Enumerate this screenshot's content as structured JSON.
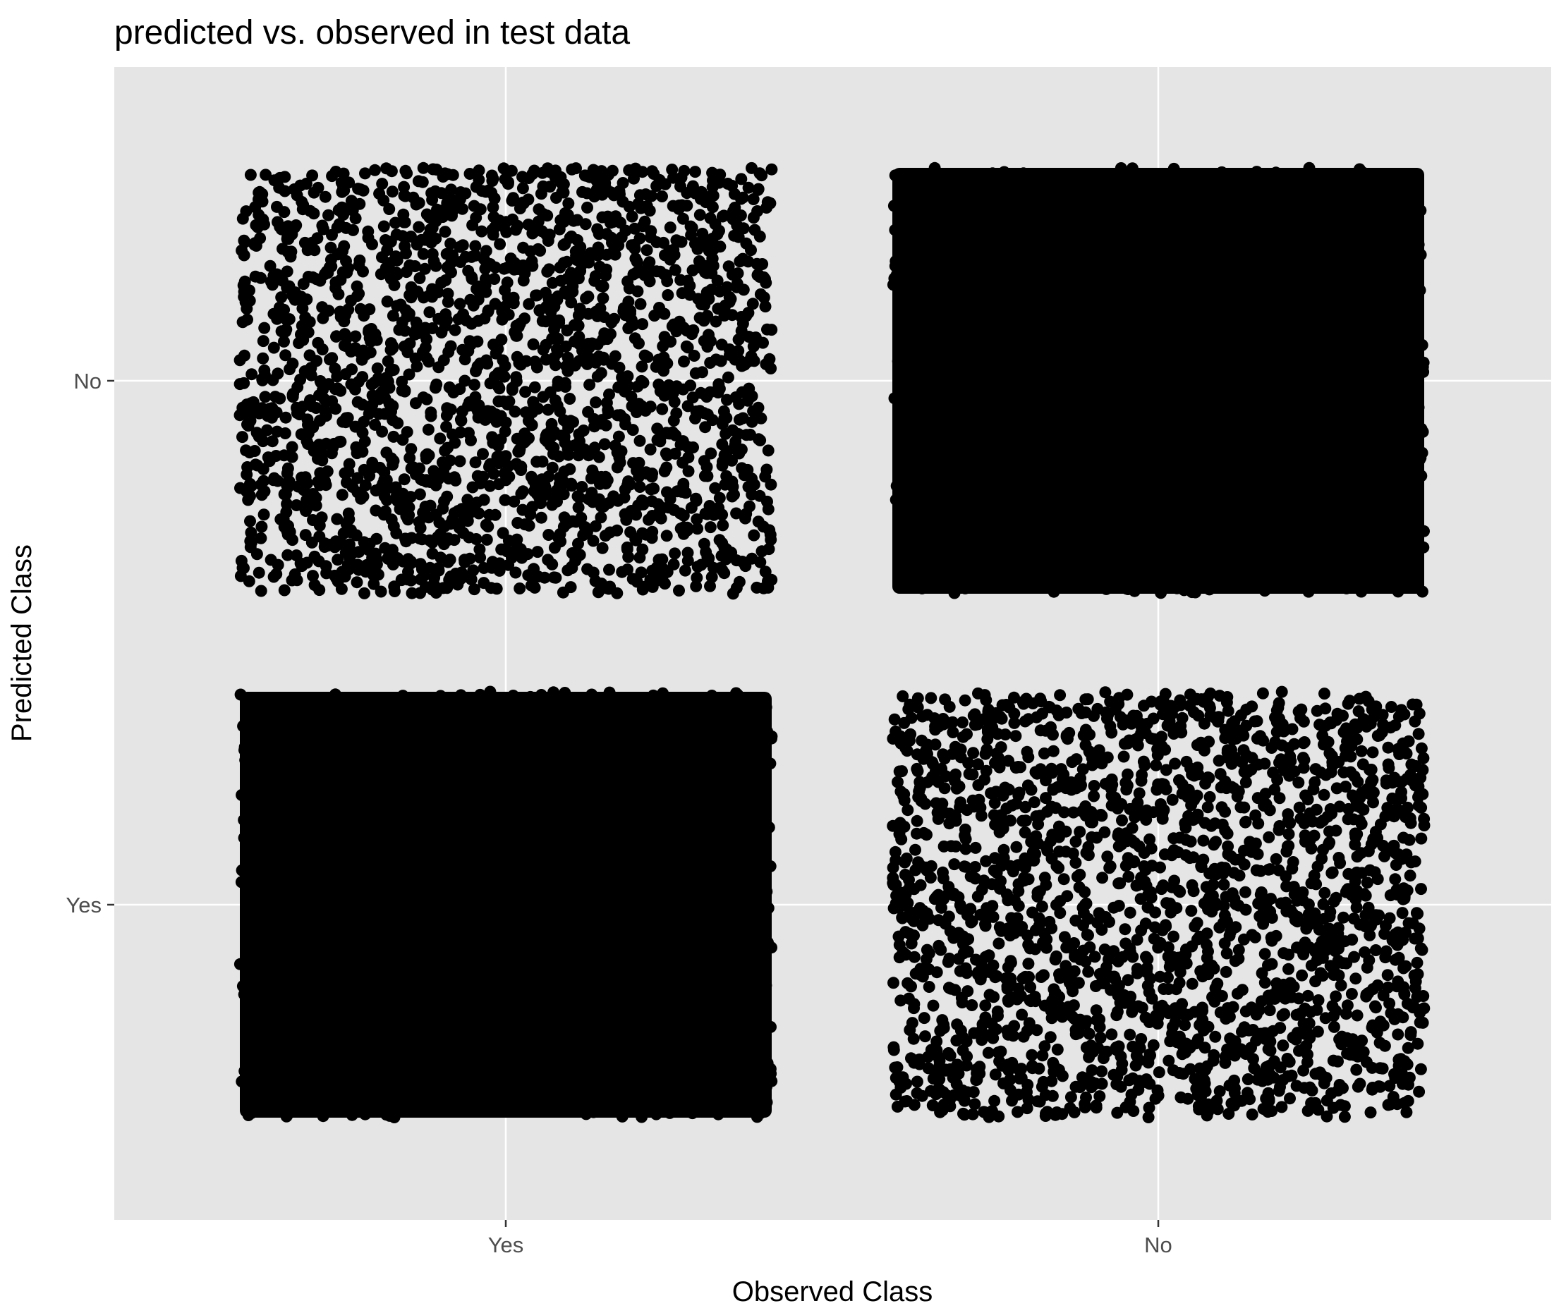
{
  "chart_data": {
    "type": "scatter",
    "title": "predicted vs. observed in test data",
    "xlabel": "Observed Class",
    "ylabel": "Predicted Class",
    "x_categories": [
      "Yes",
      "No"
    ],
    "y_categories": [
      "Yes",
      "No"
    ],
    "jitter": 0.4,
    "grid": true,
    "panel_color": "#e5e5e5",
    "grid_color": "#ffffff",
    "point_color": "#000000",
    "cells": [
      {
        "observed": "Yes",
        "predicted": "No",
        "density": "sparse"
      },
      {
        "observed": "No",
        "predicted": "No",
        "density": "dense"
      },
      {
        "observed": "Yes",
        "predicted": "Yes",
        "density": "dense"
      },
      {
        "observed": "No",
        "predicted": "Yes",
        "density": "sparse"
      }
    ]
  }
}
